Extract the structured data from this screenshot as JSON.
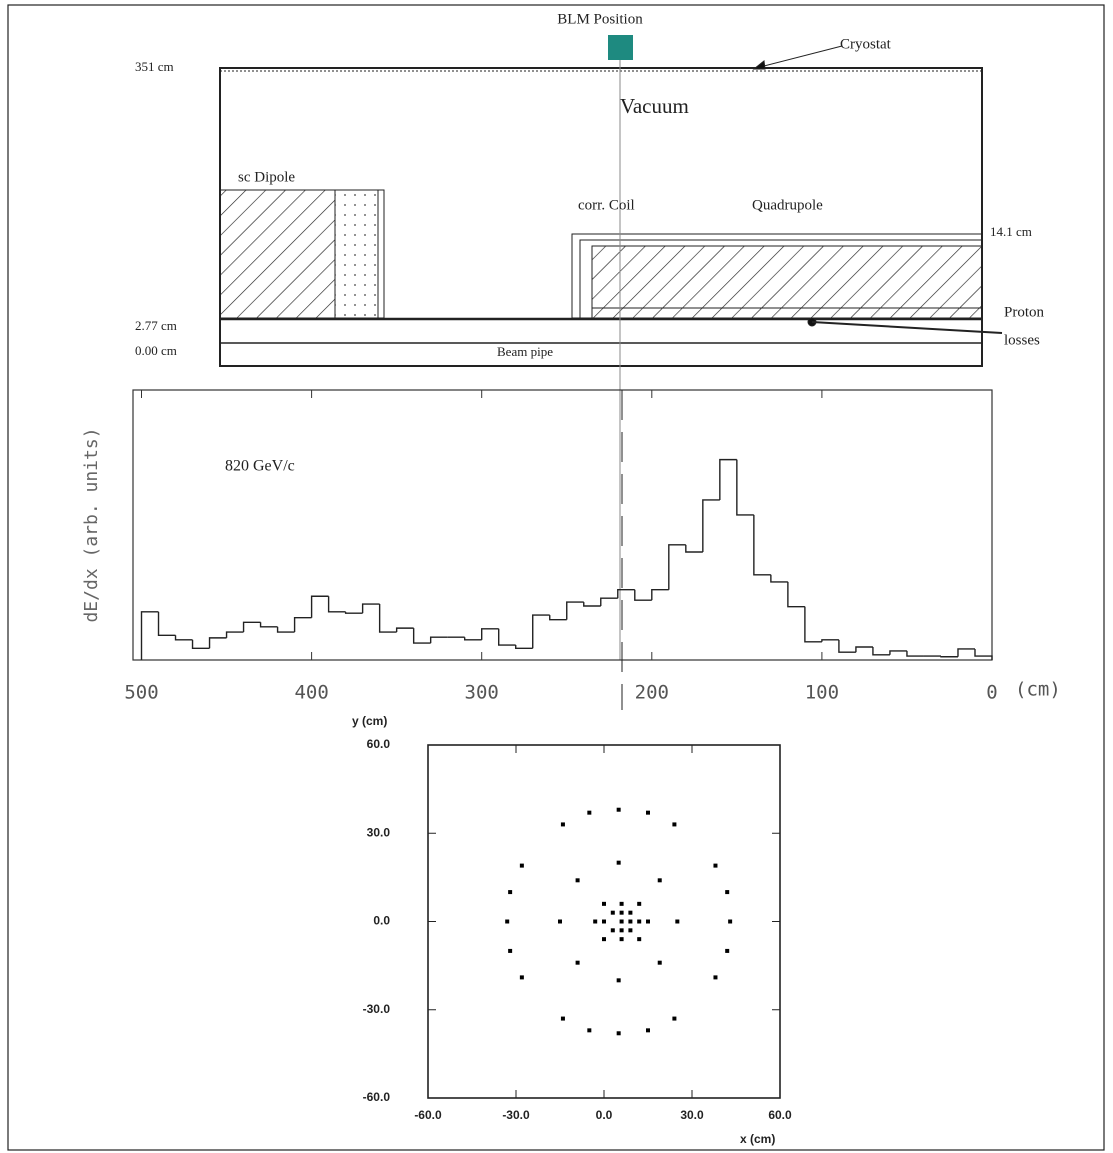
{
  "diagram": {
    "blm_label": "BLM Position",
    "cryostat": "Cryostat",
    "r_351": "351 cm",
    "vacuum": "Vacuum",
    "dipole": "sc Dipole",
    "corr_coil": "corr. Coil",
    "quadrupole": "Quadrupole",
    "r_141": "14.1 cm",
    "r_277": "2.77 cm",
    "r_000": "0.00 cm",
    "beam_pipe": "Beam pipe",
    "proton_losses": [
      "Proton",
      "losses"
    ]
  },
  "chart_data": [
    {
      "type": "histogram",
      "annotation": "820 GeV/c",
      "ylabel": "dE/dx (arb. units)",
      "xlabel": "(cm)",
      "bins": [
        500,
        490,
        480,
        470,
        460,
        450,
        440,
        430,
        420,
        410,
        400,
        390,
        380,
        370,
        360,
        350,
        340,
        330,
        320,
        310,
        300,
        290,
        280,
        270,
        260,
        250,
        240,
        230,
        220,
        210,
        200,
        190,
        180,
        170,
        160,
        150,
        140,
        130,
        120,
        110,
        100,
        90,
        80,
        70,
        60,
        50,
        40,
        30,
        20,
        10,
        0
      ],
      "values": [
        0.74,
        0.38,
        0.31,
        0.18,
        0.34,
        0.43,
        0.58,
        0.51,
        0.43,
        0.65,
        0.98,
        0.74,
        0.72,
        0.86,
        0.43,
        0.49,
        0.26,
        0.35,
        0.35,
        0.31,
        0.48,
        0.23,
        0.18,
        0.69,
        0.62,
        0.89,
        0.83,
        0.95,
        1.08,
        0.92,
        1.08,
        1.77,
        1.66,
        2.46,
        3.08,
        2.23,
        1.31,
        1.2,
        0.82,
        0.28,
        0.31,
        0.12,
        0.2,
        0.08,
        0.14,
        0.06,
        0.06,
        0.05,
        0.17,
        0.06
      ],
      "xlim": [
        505,
        0
      ],
      "ylim": [
        0,
        4.15
      ],
      "xticks": [
        500,
        400,
        300,
        200,
        100,
        0
      ],
      "color": "#222222"
    },
    {
      "type": "scatter",
      "xlabel": "x (cm)",
      "ylabel": "y (cm)",
      "x": [
        43,
        38,
        24,
        5,
        -14,
        -28,
        -33,
        -28,
        -14,
        5,
        24,
        38,
        42,
        42,
        -32,
        -32,
        15,
        -5,
        15,
        -5,
        25,
        19,
        5,
        -9,
        -15,
        -9,
        5,
        19,
        0,
        3,
        3,
        6,
        6,
        6,
        9,
        9,
        9,
        12,
        0,
        6,
        6,
        12,
        12,
        0,
        -3,
        15
      ],
      "y": [
        0,
        19,
        33,
        38,
        33,
        19,
        0,
        -19,
        -33,
        -38,
        -33,
        -19,
        10,
        -10,
        10,
        -10,
        37,
        37,
        -37,
        -37,
        0,
        14,
        20,
        14,
        0,
        -14,
        -20,
        -14,
        0,
        3,
        -3,
        0,
        3,
        -3,
        0,
        3,
        -3,
        0,
        6,
        6,
        -6,
        6,
        -6,
        -6,
        0,
        0
      ],
      "xlim": [
        -60,
        60
      ],
      "ylim": [
        -60,
        60
      ],
      "xticks": [
        {
          "value": -60,
          "label": "-60.0"
        },
        {
          "value": -30,
          "label": "-30.0"
        },
        {
          "value": 0,
          "label": "0.0"
        },
        {
          "value": 30,
          "label": "30.0"
        },
        {
          "value": 60,
          "label": "60.0"
        }
      ],
      "yticks": [
        {
          "value": -60,
          "label": "-60.0"
        },
        {
          "value": -30,
          "label": "-30.0"
        },
        {
          "value": 0,
          "label": "0.0"
        },
        {
          "value": 30,
          "label": "30.0"
        },
        {
          "value": 60,
          "label": "60.0"
        }
      ],
      "color": "#000000"
    }
  ]
}
